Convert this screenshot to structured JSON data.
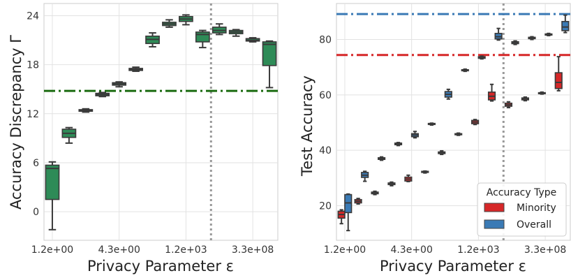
{
  "chart_data": [
    {
      "type": "box",
      "xlabel": "Privacy Parameter ε",
      "ylabel": "Accuracy Discrepancy Γ",
      "xtick_labels": [
        "1.2e+00",
        "4.3e+00",
        "1.2e+03",
        "3.3e+08"
      ],
      "yticks": [
        0,
        6,
        12,
        18,
        24
      ],
      "ylim": [
        -3.5,
        25.5
      ],
      "grid": true,
      "box_color": "#2e8b57",
      "reference_line": {
        "style": "dash-dot",
        "color": "#1a6b10",
        "y": 14.8
      },
      "vertical_line": {
        "style": "dotted",
        "color": "#999999",
        "x_index": 10
      },
      "boxes": [
        {
          "x": 0,
          "min": -2.2,
          "q1": 1.5,
          "median": 5.3,
          "q3": 5.7,
          "max": 6.1
        },
        {
          "x": 1,
          "min": 8.4,
          "q1": 9.1,
          "median": 9.6,
          "q3": 10.1,
          "max": 10.3
        },
        {
          "x": 2,
          "min": 12.2,
          "q1": 12.3,
          "median": 12.4,
          "q3": 12.5,
          "max": 12.6
        },
        {
          "x": 3,
          "min": 14.1,
          "q1": 14.2,
          "median": 14.35,
          "q3": 14.5,
          "max": 14.6
        },
        {
          "x": 4,
          "min": 15.3,
          "q1": 15.5,
          "median": 15.65,
          "q3": 15.8,
          "max": 15.9
        },
        {
          "x": 5,
          "min": 17.2,
          "q1": 17.3,
          "median": 17.45,
          "q3": 17.55,
          "max": 17.7
        },
        {
          "x": 6,
          "min": 20.2,
          "q1": 20.6,
          "median": 21.1,
          "q3": 21.5,
          "max": 21.9
        },
        {
          "x": 7,
          "min": 22.6,
          "q1": 22.8,
          "median": 23.0,
          "q3": 23.2,
          "max": 23.5
        },
        {
          "x": 8,
          "min": 22.9,
          "q1": 23.3,
          "median": 23.6,
          "q3": 23.9,
          "max": 24.1
        },
        {
          "x": 9,
          "min": 20.1,
          "q1": 20.8,
          "median": 21.7,
          "q3": 22.0,
          "max": 22.2
        },
        {
          "x": 10,
          "min": 21.7,
          "q1": 21.9,
          "median": 22.2,
          "q3": 22.6,
          "max": 23.0
        },
        {
          "x": 11,
          "min": 21.5,
          "q1": 21.8,
          "median": 22.0,
          "q3": 22.2,
          "max": 22.3
        },
        {
          "x": 12,
          "min": 20.8,
          "q1": 20.9,
          "median": 21.0,
          "q3": 21.2,
          "max": 21.3
        },
        {
          "x": 13,
          "min": 15.2,
          "q1": 17.9,
          "median": 20.5,
          "q3": 20.8,
          "max": 20.9
        }
      ]
    },
    {
      "type": "box",
      "xlabel": "Privacy Parameter ε",
      "ylabel": "Test Accuracy",
      "xtick_labels": [
        "1.2e+00",
        "4.3e+00",
        "1.2e+03",
        "3.3e+08"
      ],
      "yticks": [
        20,
        40,
        60,
        80
      ],
      "ylim": [
        7.5,
        93
      ],
      "grid": true,
      "vertical_line": {
        "style": "dotted",
        "color": "#999999",
        "x_index": 10
      },
      "reference_lines": [
        {
          "style": "dash-dot",
          "color": "#3a7ab5",
          "y": 89.2
        },
        {
          "style": "dash-dot",
          "color": "#d62728",
          "y": 74.4
        }
      ],
      "legend": {
        "title": "Accuracy Type",
        "position": "bottom-right",
        "entries": [
          {
            "label": "Minority",
            "color": "#d62728"
          },
          {
            "label": "Overall",
            "color": "#3a7ab5"
          }
        ]
      },
      "series": [
        {
          "name": "Minority",
          "color": "#d62728",
          "boxes": [
            {
              "x": 0,
              "min": 13.5,
              "q1": 15.5,
              "median": 16.8,
              "q3": 18.0,
              "max": 18.5
            },
            {
              "x": 1,
              "min": 20.6,
              "q1": 21.0,
              "median": 21.6,
              "q3": 22.2,
              "max": 22.6
            },
            {
              "x": 2,
              "min": 24.0,
              "q1": 24.3,
              "median": 24.6,
              "q3": 24.9,
              "max": 25.2
            },
            {
              "x": 3,
              "min": 27.2,
              "q1": 27.6,
              "median": 27.9,
              "q3": 28.2,
              "max": 28.5
            },
            {
              "x": 4,
              "min": 28.7,
              "q1": 28.9,
              "median": 29.6,
              "q3": 30.3,
              "max": 31.0
            },
            {
              "x": 5,
              "min": 31.8,
              "q1": 32.0,
              "median": 32.2,
              "q3": 32.4,
              "max": 32.5
            },
            {
              "x": 6,
              "min": 38.5,
              "q1": 38.8,
              "median": 39.1,
              "q3": 39.4,
              "max": 39.8
            },
            {
              "x": 7,
              "min": 45.4,
              "q1": 45.6,
              "median": 45.8,
              "q3": 46.0,
              "max": 46.2
            },
            {
              "x": 8,
              "min": 49.3,
              "q1": 49.6,
              "median": 50.2,
              "q3": 50.8,
              "max": 51.1
            },
            {
              "x": 9,
              "min": 57.8,
              "q1": 58.2,
              "median": 59.5,
              "q3": 61.0,
              "max": 63.8
            },
            {
              "x": 10,
              "min": 55.4,
              "q1": 55.9,
              "median": 56.4,
              "q3": 57.0,
              "max": 57.5
            },
            {
              "x": 11,
              "min": 57.9,
              "q1": 58.2,
              "median": 58.6,
              "q3": 58.9,
              "max": 59.2
            },
            {
              "x": 12,
              "min": 60.3,
              "q1": 60.5,
              "median": 60.7,
              "q3": 60.8,
              "max": 61.0
            },
            {
              "x": 13,
              "min": 61.5,
              "q1": 62.3,
              "median": 64.5,
              "q3": 68.0,
              "max": 73.8
            }
          ]
        },
        {
          "name": "Overall",
          "color": "#3a7ab5",
          "boxes": [
            {
              "x": 0,
              "min": 11.0,
              "q1": 17.5,
              "median": 21.0,
              "q3": 24.0,
              "max": 24.2
            },
            {
              "x": 1,
              "min": 28.8,
              "q1": 30.2,
              "median": 31.0,
              "q3": 32.0,
              "max": 32.4
            },
            {
              "x": 2,
              "min": 36.4,
              "q1": 36.7,
              "median": 37.0,
              "q3": 37.3,
              "max": 37.6
            },
            {
              "x": 3,
              "min": 41.7,
              "q1": 42.0,
              "median": 42.3,
              "q3": 42.6,
              "max": 42.8
            },
            {
              "x": 4,
              "min": 44.5,
              "q1": 44.9,
              "median": 45.5,
              "q3": 46.0,
              "max": 46.8
            },
            {
              "x": 5,
              "min": 49.1,
              "q1": 49.3,
              "median": 49.5,
              "q3": 49.7,
              "max": 49.8
            },
            {
              "x": 6,
              "min": 58.5,
              "q1": 59.2,
              "median": 60.2,
              "q3": 61.2,
              "max": 62.0
            },
            {
              "x": 7,
              "min": 68.5,
              "q1": 68.7,
              "median": 68.9,
              "q3": 69.1,
              "max": 69.3
            },
            {
              "x": 8,
              "min": 73.0,
              "q1": 73.2,
              "median": 73.5,
              "q3": 73.8,
              "max": 74.0
            },
            {
              "x": 9,
              "min": 79.8,
              "q1": 80.2,
              "median": 81.0,
              "q3": 82.2,
              "max": 84.0
            },
            {
              "x": 10,
              "min": 78.2,
              "q1": 78.5,
              "median": 78.9,
              "q3": 79.2,
              "max": 79.5
            },
            {
              "x": 11,
              "min": 80.0,
              "q1": 80.3,
              "median": 80.6,
              "q3": 80.8,
              "max": 81.0
            },
            {
              "x": 12,
              "min": 81.4,
              "q1": 81.6,
              "median": 81.8,
              "q3": 82.0,
              "max": 82.2
            },
            {
              "x": 13,
              "min": 82.5,
              "q1": 83.2,
              "median": 84.5,
              "q3": 86.5,
              "max": 88.8
            }
          ]
        }
      ]
    }
  ]
}
